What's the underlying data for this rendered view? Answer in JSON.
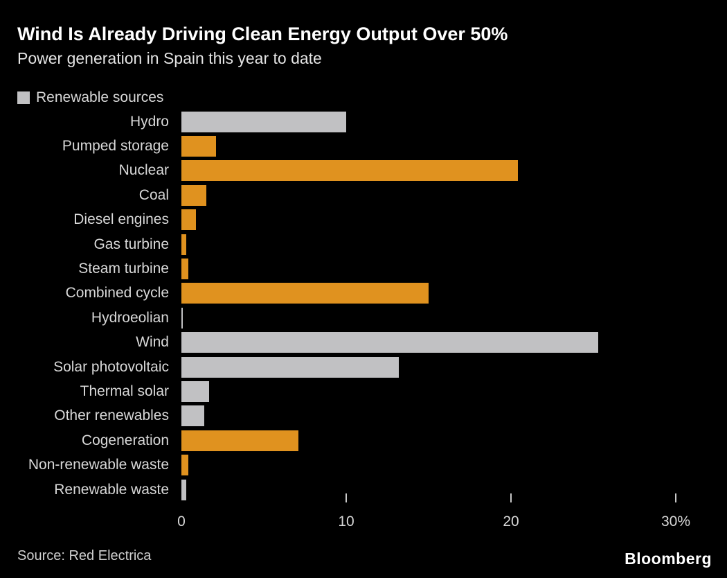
{
  "header": {
    "title": "Wind Is Already Driving Clean Energy Output Over 50%",
    "subtitle": "Power generation in Spain this year to date"
  },
  "legend": {
    "label": "Renewable sources",
    "swatch_color": "#c1c1c3"
  },
  "chart_data": {
    "type": "bar",
    "orientation": "horizontal",
    "title": "Wind Is Already Driving Clean Energy Output Over 50%",
    "subtitle": "Power generation in Spain this year to date",
    "unit": "percent",
    "categories": [
      "Hydro",
      "Pumped storage",
      "Nuclear",
      "Coal",
      "Diesel engines",
      "Gas turbine",
      "Steam turbine",
      "Combined cycle",
      "Hydroeolian",
      "Wind",
      "Solar photovoltaic",
      "Thermal solar",
      "Other renewables",
      "Cogeneration",
      "Non-renewable waste",
      "Renewable waste"
    ],
    "values": [
      10.0,
      2.1,
      20.4,
      1.5,
      0.9,
      0.3,
      0.4,
      15.0,
      0.1,
      25.3,
      13.2,
      1.7,
      1.4,
      7.1,
      0.4,
      0.3
    ],
    "renewable_flags": [
      true,
      false,
      false,
      false,
      false,
      false,
      false,
      false,
      true,
      true,
      true,
      true,
      true,
      false,
      false,
      true
    ],
    "legend_entries": [
      "Renewable sources"
    ],
    "colors": {
      "renewable": "#c1c1c3",
      "non_renewable": "#e0921f",
      "background": "#000000",
      "text": "#d8d8d8"
    },
    "xlim": [
      0,
      32
    ],
    "xticks": [
      0,
      10,
      20,
      30
    ],
    "xtick_labels": [
      "0",
      "10",
      "20",
      "30%"
    ],
    "grid": false,
    "legend_position": "top-left"
  },
  "footer": {
    "source": "Source: Red Electrica",
    "brand": "Bloomberg"
  }
}
